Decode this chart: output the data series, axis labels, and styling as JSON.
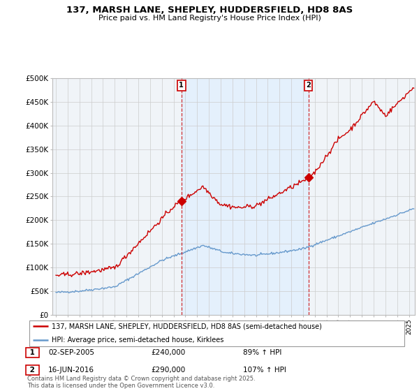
{
  "title1": "137, MARSH LANE, SHEPLEY, HUDDERSFIELD, HD8 8AS",
  "title2": "Price paid vs. HM Land Registry's House Price Index (HPI)",
  "ylim": [
    0,
    500000
  ],
  "yticks": [
    0,
    50000,
    100000,
    150000,
    200000,
    250000,
    300000,
    350000,
    400000,
    450000,
    500000
  ],
  "ytick_labels": [
    "£0",
    "£50K",
    "£100K",
    "£150K",
    "£200K",
    "£250K",
    "£300K",
    "£350K",
    "£400K",
    "£450K",
    "£500K"
  ],
  "red_color": "#cc0000",
  "blue_color": "#6699cc",
  "shade_color": "#ddeeff",
  "legend_label_red": "137, MARSH LANE, SHEPLEY, HUDDERSFIELD, HD8 8AS (semi-detached house)",
  "legend_label_blue": "HPI: Average price, semi-detached house, Kirklees",
  "annotation1_label": "1",
  "annotation1_date": "02-SEP-2005",
  "annotation1_price": "£240,000",
  "annotation1_hpi": "89% ↑ HPI",
  "annotation2_label": "2",
  "annotation2_date": "16-JUN-2016",
  "annotation2_price": "£290,000",
  "annotation2_hpi": "107% ↑ HPI",
  "sale1_year": 2005.667,
  "sale1_price": 240000,
  "sale2_year": 2016.458,
  "sale2_price": 290000,
  "footnote": "Contains HM Land Registry data © Crown copyright and database right 2025.\nThis data is licensed under the Open Government Licence v3.0.",
  "bg_color": "#f0f4f8",
  "grid_color": "#cccccc",
  "xmin": 1994.7,
  "xmax": 2025.5
}
